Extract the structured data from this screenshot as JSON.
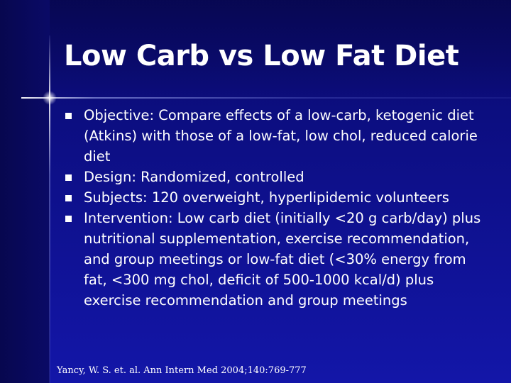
{
  "slide": {
    "title": "Low Carb vs Low Fat Diet",
    "bullets": [
      {
        "text": "Objective: Compare effects of a low-carb, ketogenic diet  (Atkins) with those of a low-fat, low chol, reduced calorie diet"
      },
      {
        "text": "Design: Randomized, controlled"
      },
      {
        "text": "Subjects: 120 overweight, hyperlipidemic volunteers"
      },
      {
        "text": "Intervention: Low carb diet (initially <20 g carb/day) plus nutritional supplementation, exercise recommendation, and group meetings or low-fat diet (<30% energy from fat, <300 mg chol, deficit of 500-1000 kcal/d) plus exercise recommendation and group meetings"
      }
    ],
    "citation": "Yancy, W. S. et. al. Ann Intern Med 2004;140:769-777"
  },
  "colors": {
    "background": "#0d0f86",
    "text": "#ffffff"
  },
  "icons": {
    "bullet": "square-bullet-icon"
  }
}
